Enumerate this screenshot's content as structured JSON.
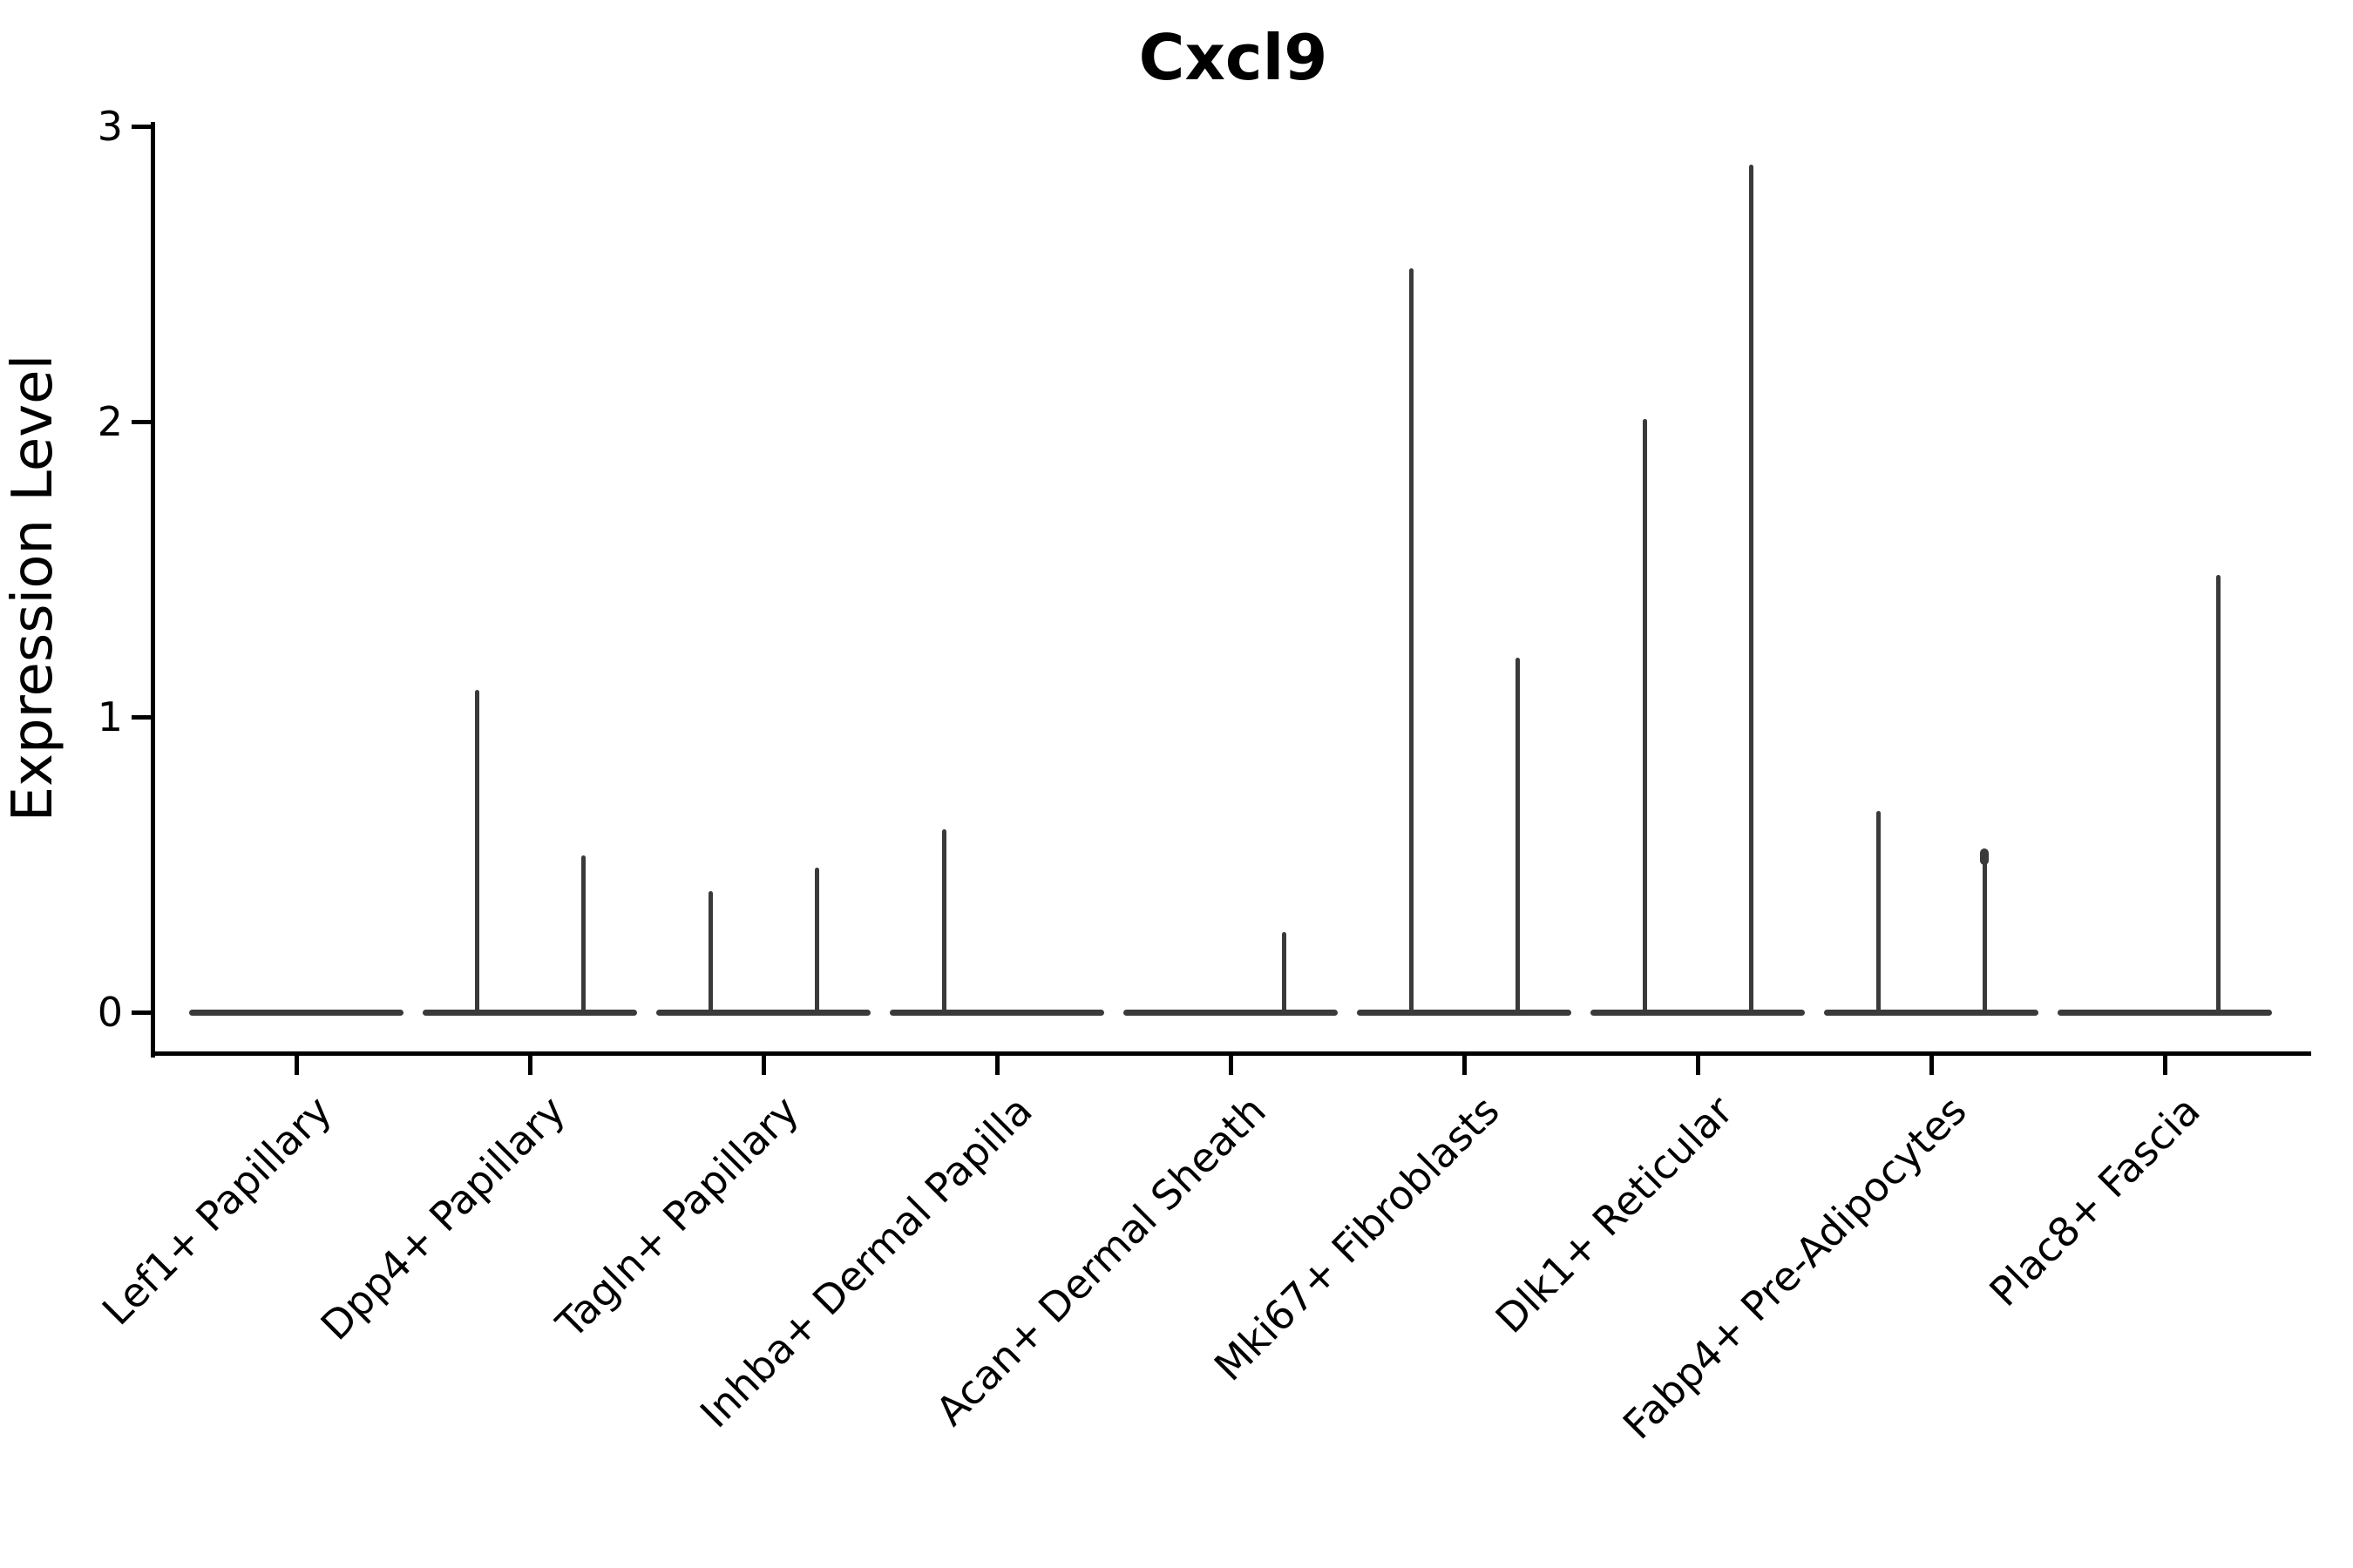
{
  "page": {
    "background_color": "#ffffff",
    "text_color": "#000000"
  },
  "chart_data": {
    "type": "violin",
    "title": "Cxcl9",
    "ylabel": "Expression Level",
    "xlabel": "",
    "ylim": [
      0,
      3
    ],
    "yticks": [
      "0",
      "1",
      "2",
      "3"
    ],
    "ytick_values": [
      0,
      1,
      2,
      3
    ],
    "grid": false,
    "legend": "none",
    "violin_color": "#3a3a3a",
    "axis_color": "#000000",
    "categories": [
      "Lef1+ Papillary",
      "Dpp4+ Papillary",
      "Tagln+ Papillary",
      "Inhba+ Dermal Papilla",
      "Acan+ Dermal Sheath",
      "Mki67+ Fibroblasts",
      "Dlk1+ Reticular",
      "Fabp4+ Pre-Adipocytes",
      "Plac8+ Fascia"
    ],
    "violins": [
      {
        "category": "Lef1+ Papillary",
        "baseline_value": 0,
        "spikes": []
      },
      {
        "category": "Dpp4+ Papillary",
        "baseline_value": 0,
        "spikes": [
          {
            "group": "left",
            "max": 1.09
          },
          {
            "group": "right",
            "max": 0.53
          }
        ]
      },
      {
        "category": "Tagln+ Papillary",
        "baseline_value": 0,
        "spikes": [
          {
            "group": "left",
            "max": 0.41
          },
          {
            "group": "right",
            "max": 0.49
          }
        ]
      },
      {
        "category": "Inhba+ Dermal Papilla",
        "baseline_value": 0,
        "spikes": [
          {
            "group": "left",
            "max": 0.62
          }
        ]
      },
      {
        "category": "Acan+ Dermal Sheath",
        "baseline_value": 0,
        "spikes": [
          {
            "group": "right",
            "max": 0.27
          }
        ]
      },
      {
        "category": "Mki67+ Fibroblasts",
        "baseline_value": 0,
        "spikes": [
          {
            "group": "left",
            "max": 2.52
          },
          {
            "group": "right",
            "max": 1.2
          }
        ]
      },
      {
        "category": "Dlk1+ Reticular",
        "baseline_value": 0,
        "spikes": [
          {
            "group": "left",
            "max": 2.01
          },
          {
            "group": "right",
            "max": 2.87
          }
        ]
      },
      {
        "category": "Fabp4+ Pre-Adipocytes",
        "baseline_value": 0,
        "spikes": [
          {
            "group": "left",
            "max": 0.68
          },
          {
            "group": "right",
            "max": 0.55,
            "tip_dot": true
          }
        ]
      },
      {
        "category": "Plac8+ Fascia",
        "baseline_value": 0,
        "spikes": [
          {
            "group": "right",
            "max": 1.48
          }
        ]
      }
    ]
  }
}
